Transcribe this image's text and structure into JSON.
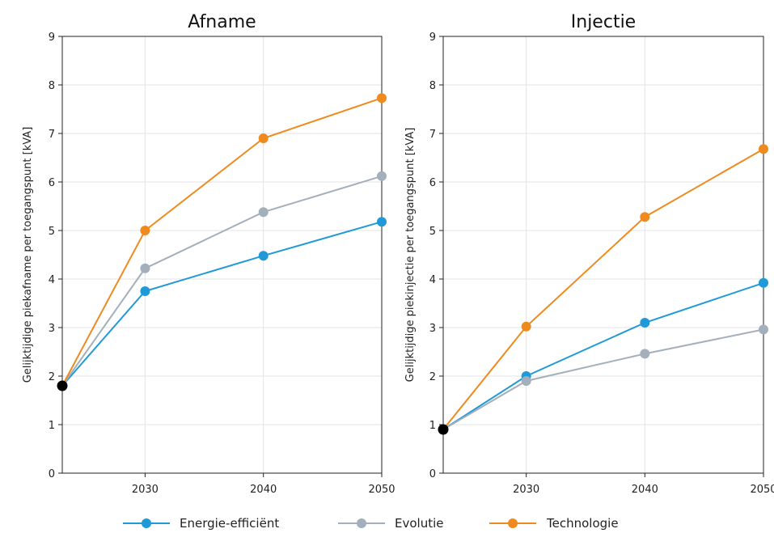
{
  "chart_data": [
    {
      "type": "line",
      "title": "Afname",
      "ylabel": "Gelijktijdige piekafname per toegangspunt [kVA]",
      "xlabel": "",
      "x_ticks": [
        "2030",
        "2040",
        "2050"
      ],
      "y_ticks": [
        "0",
        "1",
        "2",
        "3",
        "4",
        "5",
        "6",
        "7",
        "8",
        "9"
      ],
      "xlim": [
        2023,
        2050
      ],
      "ylim": [
        0,
        9
      ],
      "grid": true,
      "start_point": {
        "x": 2023,
        "y": 1.8,
        "color": "#000000"
      },
      "series": [
        {
          "name": "Energie-efficiënt",
          "color": "#1f9ad6",
          "x": [
            2023,
            2030,
            2040,
            2050
          ],
          "y": [
            1.8,
            3.75,
            4.48,
            5.18
          ]
        },
        {
          "name": "Evolutie",
          "color": "#a3afbb",
          "x": [
            2023,
            2030,
            2040,
            2050
          ],
          "y": [
            1.8,
            4.22,
            5.38,
            6.12
          ]
        },
        {
          "name": "Technologie",
          "color": "#ef8a1f",
          "x": [
            2023,
            2030,
            2040,
            2050
          ],
          "y": [
            1.8,
            5.0,
            6.9,
            7.73
          ]
        }
      ]
    },
    {
      "type": "line",
      "title": "Injectie",
      "ylabel": "Gelijktijdige piekinjectie per toegangspunt [kVA]",
      "xlabel": "",
      "x_ticks": [
        "2030",
        "2040",
        "2050"
      ],
      "y_ticks": [
        "0",
        "1",
        "2",
        "3",
        "4",
        "5",
        "6",
        "7",
        "8",
        "9"
      ],
      "xlim": [
        2023,
        2050
      ],
      "ylim": [
        0,
        9
      ],
      "grid": true,
      "start_point": {
        "x": 2023,
        "y": 0.9,
        "color": "#000000"
      },
      "series": [
        {
          "name": "Energie-efficiënt",
          "color": "#1f9ad6",
          "x": [
            2023,
            2030,
            2040,
            2050
          ],
          "y": [
            0.9,
            2.0,
            3.1,
            3.92
          ]
        },
        {
          "name": "Evolutie",
          "color": "#a3afbb",
          "x": [
            2023,
            2030,
            2040,
            2050
          ],
          "y": [
            0.9,
            1.9,
            2.46,
            2.96
          ]
        },
        {
          "name": "Technologie",
          "color": "#ef8a1f",
          "x": [
            2023,
            2030,
            2040,
            2050
          ],
          "y": [
            0.9,
            3.02,
            5.28,
            6.68
          ]
        }
      ]
    }
  ],
  "legend": {
    "placement": "bottom-center",
    "items": [
      {
        "label": "Energie-efficiënt",
        "color": "#1f9ad6"
      },
      {
        "label": "Evolutie",
        "color": "#a3afbb"
      },
      {
        "label": "Technologie",
        "color": "#ef8a1f"
      }
    ]
  }
}
